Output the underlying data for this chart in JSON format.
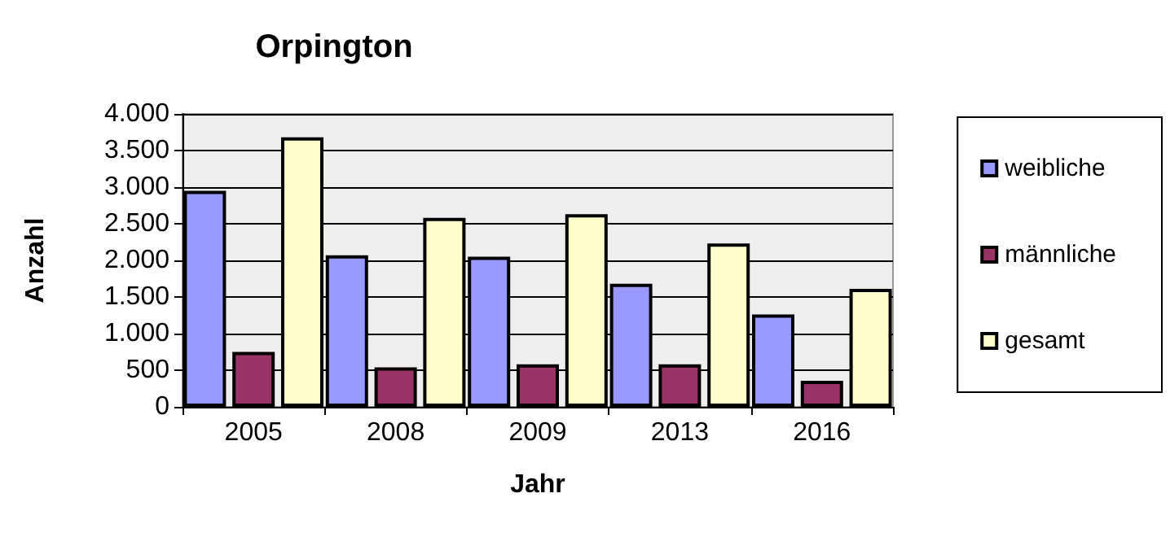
{
  "chart_data": {
    "type": "bar",
    "title": "Orpington",
    "xlabel": "Jahr",
    "ylabel": "Anzahl",
    "categories": [
      "2005",
      "2008",
      "2009",
      "2013",
      "2016"
    ],
    "series": [
      {
        "name": "weibliche",
        "color": "#9999ff",
        "values": [
          2950,
          2070,
          2050,
          1680,
          1260
        ]
      },
      {
        "name": "männliche",
        "color": "#993366",
        "values": [
          750,
          540,
          580,
          580,
          355
        ]
      },
      {
        "name": "gesamt",
        "color": "#ffffcc",
        "values": [
          3680,
          2580,
          2630,
          2230,
          1610
        ]
      }
    ],
    "ylim": [
      0,
      4000
    ],
    "yticks": [
      {
        "value": 0,
        "label": "0"
      },
      {
        "value": 500,
        "label": "500"
      },
      {
        "value": 1000,
        "label": "1.000"
      },
      {
        "value": 1500,
        "label": "1.500"
      },
      {
        "value": 2000,
        "label": "2.000"
      },
      {
        "value": 2500,
        "label": "2.500"
      },
      {
        "value": 3000,
        "label": "3.000"
      },
      {
        "value": 3500,
        "label": "3.500"
      },
      {
        "value": 4000,
        "label": "4.000"
      }
    ],
    "grid": "y",
    "legend": "right"
  }
}
